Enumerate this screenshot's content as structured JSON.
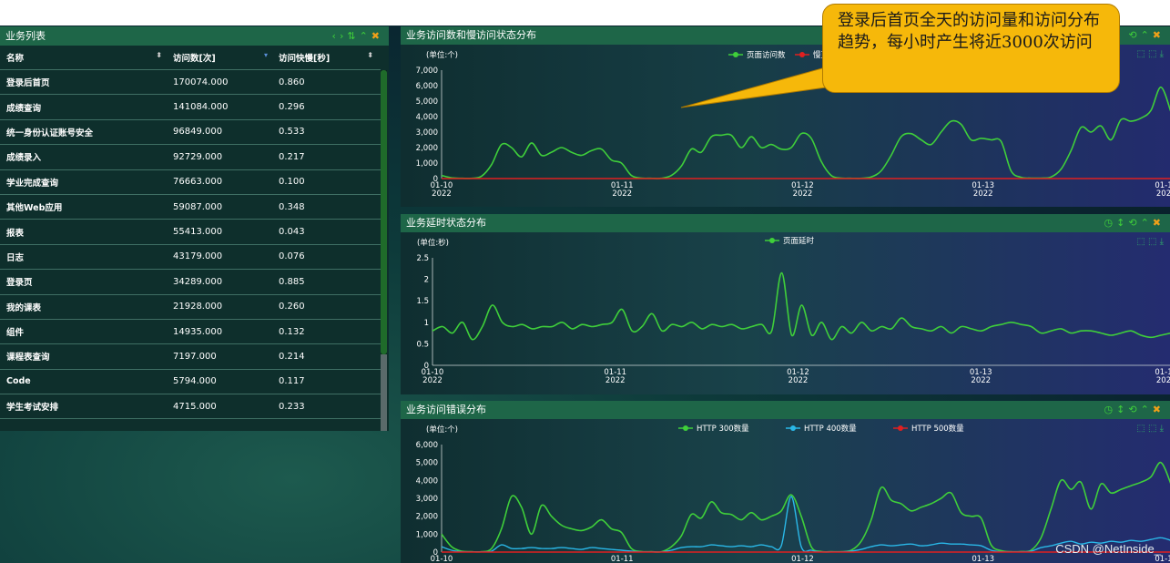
{
  "left_panel": {
    "title": "业务列表",
    "columns": [
      "名称",
      "访问数[次]",
      "访问快慢[秒]"
    ],
    "rows": [
      {
        "name": "登录后首页",
        "count": "170074.000",
        "speed": "0.860"
      },
      {
        "name": "成绩查询",
        "count": "141084.000",
        "speed": "0.296"
      },
      {
        "name": "统一身份认证账号安全",
        "count": "96849.000",
        "speed": "0.533"
      },
      {
        "name": "成绩录入",
        "count": "92729.000",
        "speed": "0.217"
      },
      {
        "name": "学业完成查询",
        "count": "76663.000",
        "speed": "0.100"
      },
      {
        "name": "其他Web应用",
        "count": "59087.000",
        "speed": "0.348"
      },
      {
        "name": "报表",
        "count": "55413.000",
        "speed": "0.043"
      },
      {
        "name": "日志",
        "count": "43179.000",
        "speed": "0.076"
      },
      {
        "name": "登录页",
        "count": "34289.000",
        "speed": "0.885"
      },
      {
        "name": "我的课表",
        "count": "21928.000",
        "speed": "0.260"
      },
      {
        "name": "组件",
        "count": "14935.000",
        "speed": "0.132"
      },
      {
        "name": "课程表查询",
        "count": "7197.000",
        "speed": "0.214"
      },
      {
        "name": "Code",
        "count": "5794.000",
        "speed": "0.117"
      },
      {
        "name": "学生考试安排",
        "count": "4715.000",
        "speed": "0.233"
      }
    ]
  },
  "callout": {
    "text": "登录后首页全天的访问量和访问分布趋势，每小时产生将近3000次访问"
  },
  "watermark": "CSDN @NetInside_",
  "colors": {
    "panel_title": "#1e6648",
    "green": "#3fcf3a",
    "red": "#e02020",
    "cyan": "#2ab8e8",
    "orange": "#f0a019",
    "callout": "#f6b80a"
  },
  "chart_data": [
    {
      "type": "line",
      "title": "业务访问数和慢访问状态分布",
      "unit_label": "(单位:个)",
      "x_ticks": [
        {
          "d": "01-10",
          "y": "2022"
        },
        {
          "d": "01-11",
          "y": "2022"
        },
        {
          "d": "01-12",
          "y": "2022"
        },
        {
          "d": "01-13",
          "y": "2022"
        },
        {
          "d": "01-1",
          "y": "202"
        }
      ],
      "y_ticks": [
        "0",
        "1,000",
        "2,000",
        "3,000",
        "4,000",
        "5,000",
        "6,000",
        "7,000"
      ],
      "ylim": [
        0,
        7000
      ],
      "legend": [
        "页面访问数",
        "慢页"
      ],
      "series": [
        {
          "name": "页面访问数",
          "color": "#3fcf3a",
          "values": [
            200,
            50,
            20,
            20,
            150,
            900,
            2200,
            2000,
            1400,
            2300,
            1500,
            1700,
            2000,
            1700,
            1500,
            1800,
            1900,
            1200,
            1000,
            200,
            30,
            20,
            20,
            200,
            800,
            1900,
            1700,
            2700,
            2800,
            2800,
            2000,
            2700,
            2000,
            2200,
            1900,
            2000,
            2900,
            2600,
            1100,
            200,
            30,
            20,
            20,
            100,
            500,
            1500,
            2700,
            2900,
            2500,
            2200,
            3000,
            3700,
            3500,
            2500,
            2600,
            2500,
            2400,
            500,
            80,
            30,
            30,
            100,
            600,
            1800,
            3300,
            3000,
            3400,
            2500,
            3800,
            3700,
            3900,
            4400,
            5900,
            4300
          ]
        },
        {
          "name": "慢页",
          "color": "#e02020",
          "values": [
            0,
            0,
            0,
            0,
            0,
            0,
            0,
            0,
            0,
            0,
            0,
            0,
            0,
            0,
            0,
            0,
            0,
            0,
            0,
            0,
            0,
            0,
            0,
            0,
            0,
            0,
            0,
            0,
            0,
            0,
            0,
            0,
            0,
            0,
            0,
            0,
            0,
            0,
            0,
            0,
            0,
            0,
            0,
            0,
            0,
            0,
            0,
            0,
            0,
            0,
            0,
            0,
            0,
            0,
            0,
            0,
            0,
            0,
            0,
            0,
            0,
            0,
            0,
            0,
            0,
            0,
            0,
            0,
            0,
            0,
            0,
            0,
            0,
            0,
            0
          ]
        }
      ]
    },
    {
      "type": "line",
      "title": "业务延时状态分布",
      "unit_label": "(单位:秒)",
      "x_ticks": [
        {
          "d": "01-10",
          "y": "2022"
        },
        {
          "d": "01-11",
          "y": "2022"
        },
        {
          "d": "01-12",
          "y": "2022"
        },
        {
          "d": "01-13",
          "y": "2022"
        },
        {
          "d": "01-1",
          "y": "202"
        }
      ],
      "y_ticks": [
        "0",
        "0.5",
        "1",
        "1.5",
        "2",
        "2.5"
      ],
      "ylim": [
        0,
        2.5
      ],
      "legend": [
        "页面延时"
      ],
      "series": [
        {
          "name": "页面延时",
          "color": "#3fcf3a",
          "values": [
            0.8,
            0.9,
            0.75,
            1.0,
            0.6,
            0.9,
            1.4,
            1.0,
            0.9,
            0.95,
            0.85,
            0.9,
            0.9,
            1.0,
            0.85,
            0.95,
            0.9,
            0.95,
            1.0,
            1.3,
            0.8,
            0.9,
            1.2,
            0.8,
            0.95,
            0.9,
            1.0,
            0.85,
            0.95,
            0.9,
            0.95,
            0.85,
            0.9,
            0.95,
            0.8,
            2.15,
            0.7,
            1.4,
            0.7,
            1.0,
            0.6,
            0.9,
            0.75,
            1.0,
            0.8,
            0.9,
            0.85,
            1.1,
            0.9,
            0.85,
            0.8,
            0.9,
            0.75,
            0.9,
            0.85,
            0.8,
            0.9,
            0.95,
            1.0,
            0.95,
            0.9,
            0.75,
            0.8,
            0.85,
            0.75,
            0.8,
            0.8,
            0.75,
            0.7,
            0.75,
            0.8,
            0.7,
            0.65,
            0.7,
            0.75
          ]
        }
      ]
    },
    {
      "type": "line",
      "title": "业务访问错误分布",
      "unit_label": "(单位:个)",
      "x_ticks": [
        {
          "d": "01-10",
          "y": ""
        },
        {
          "d": "01-11",
          "y": ""
        },
        {
          "d": "01-12",
          "y": ""
        },
        {
          "d": "01-13",
          "y": ""
        },
        {
          "d": "01-1",
          "y": ""
        }
      ],
      "y_ticks": [
        "0",
        "1,000",
        "2,000",
        "3,000",
        "4,000",
        "5,000",
        "6,000"
      ],
      "ylim": [
        0,
        6000
      ],
      "legend": [
        "HTTP 300数量",
        "HTTP 400数量",
        "HTTP 500数量"
      ],
      "series": [
        {
          "name": "HTTP 300数量",
          "color": "#3fcf3a",
          "values": [
            1000,
            300,
            50,
            20,
            20,
            200,
            1300,
            3100,
            2500,
            1000,
            2600,
            2000,
            1500,
            1300,
            1200,
            1400,
            1800,
            1300,
            1100,
            200,
            30,
            20,
            20,
            300,
            900,
            2100,
            1900,
            2800,
            2200,
            2100,
            1800,
            2200,
            1800,
            2000,
            2300,
            3200,
            2000,
            300,
            30,
            20,
            20,
            100,
            600,
            1800,
            3600,
            2900,
            2700,
            2300,
            2500,
            2700,
            3000,
            3300,
            2200,
            2000,
            1900,
            400,
            80,
            20,
            30,
            100,
            800,
            2400,
            4000,
            3500,
            3900,
            2400,
            3800,
            3300,
            3500,
            3700,
            3900,
            4200,
            5000,
            3800
          ]
        },
        {
          "name": "HTTP 400数量",
          "color": "#2ab8e8",
          "values": [
            300,
            100,
            20,
            10,
            10,
            50,
            400,
            200,
            200,
            250,
            200,
            200,
            250,
            200,
            150,
            250,
            200,
            150,
            100,
            50,
            10,
            10,
            10,
            100,
            250,
            300,
            300,
            400,
            350,
            300,
            350,
            300,
            400,
            300,
            350,
            3100,
            300,
            100,
            10,
            10,
            10,
            50,
            150,
            300,
            400,
            350,
            400,
            450,
            350,
            400,
            500,
            450,
            450,
            400,
            350,
            100,
            20,
            10,
            10,
            50,
            250,
            350,
            500,
            600,
            450,
            550,
            500,
            600,
            550,
            650,
            600,
            700,
            800,
            650
          ]
        },
        {
          "name": "HTTP 500数量",
          "color": "#e02020",
          "values": [
            0,
            0,
            0,
            0,
            0,
            0,
            0,
            0,
            0,
            0,
            0,
            0,
            0,
            0,
            0,
            0,
            0,
            0,
            0,
            0,
            0,
            0,
            0,
            0,
            0,
            0,
            0,
            0,
            0,
            0,
            0,
            0,
            0,
            0,
            0,
            0,
            0,
            0,
            0,
            0,
            0,
            0,
            0,
            0,
            0,
            0,
            0,
            0,
            0,
            0,
            0,
            0,
            0,
            0,
            0,
            0,
            0,
            0,
            0,
            0,
            0,
            0,
            0,
            0,
            0,
            0,
            0,
            0,
            0,
            0,
            0,
            0,
            0,
            0
          ]
        }
      ]
    }
  ]
}
